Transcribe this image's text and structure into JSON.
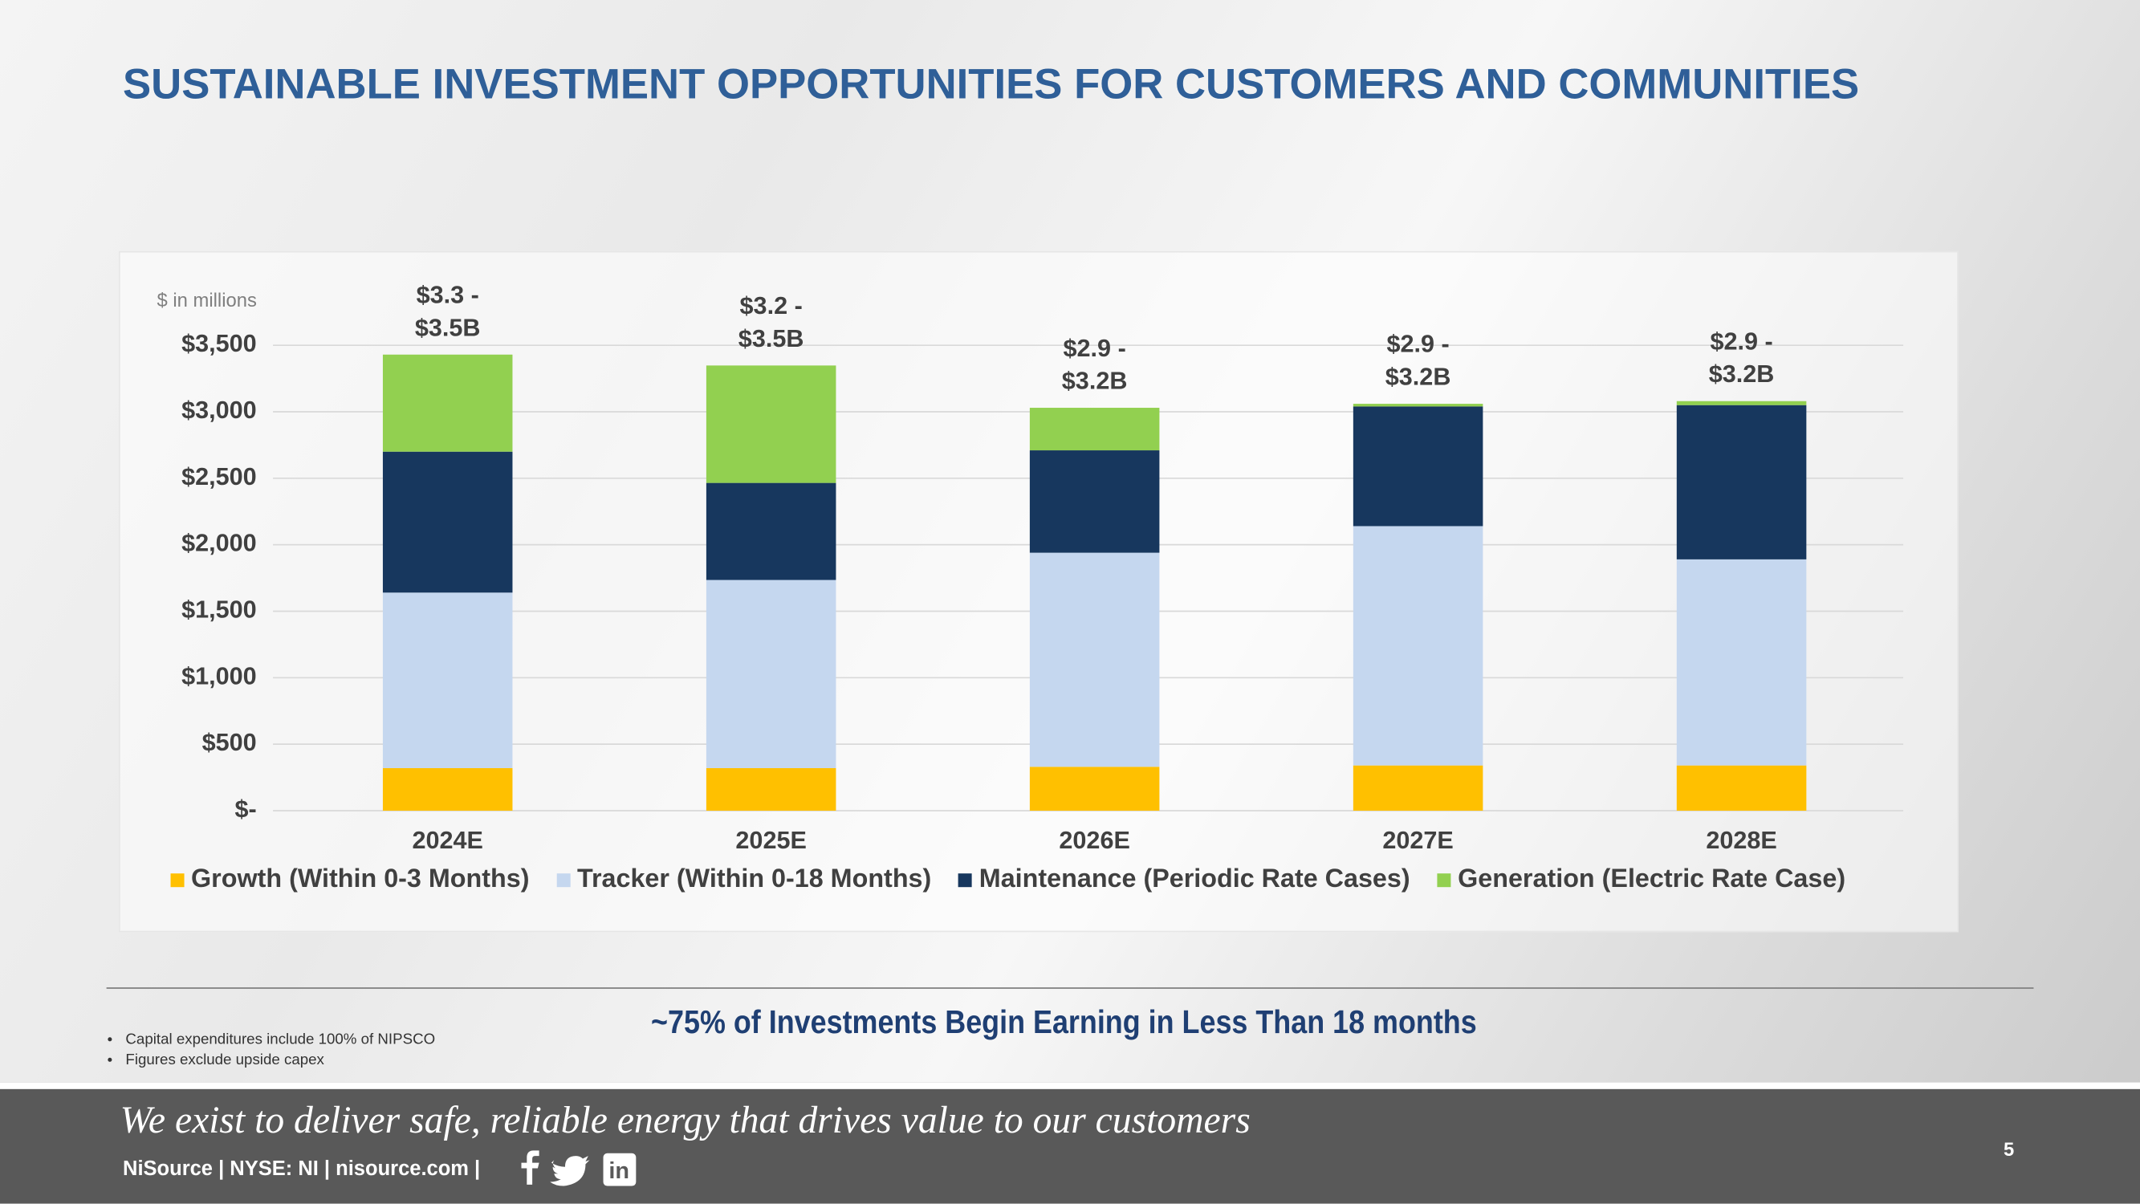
{
  "header": {
    "title": "SUSTAINABLE INVESTMENT OPPORTUNITIES FOR CUSTOMERS AND COMMUNITIES"
  },
  "chart_data": {
    "type": "bar",
    "stacked": true,
    "unit_label": "$ in millions",
    "categories": [
      "2024E",
      "2025E",
      "2026E",
      "2027E",
      "2028E"
    ],
    "series": [
      {
        "name": "Growth (Within 0-3 Months)",
        "color": "#ffc000",
        "values": [
          320,
          320,
          330,
          340,
          340
        ]
      },
      {
        "name": "Tracker (Within 0-18 Months)",
        "color": "#c5d7ef",
        "values": [
          1320,
          1415,
          1610,
          1800,
          1550
        ]
      },
      {
        "name": "Maintenance (Periodic Rate Cases)",
        "color": "#17375e",
        "values": [
          1060,
          730,
          770,
          900,
          1160
        ]
      },
      {
        "name": "Generation (Electric Rate Case)",
        "color": "#92d050",
        "values": [
          730,
          883,
          320,
          20,
          30
        ]
      }
    ],
    "total_labels": [
      "$3.3 - $3.5B",
      "$3.2 - $3.5B",
      "$2.9 - $3.2B",
      "$2.9 - $3.2B",
      "$2.9 - $3.2B"
    ],
    "ylim": [
      0,
      3500
    ],
    "yticks": [
      {
        "value": 0,
        "label": "$-"
      },
      {
        "value": 500,
        "label": "$500"
      },
      {
        "value": 1000,
        "label": "$1,000"
      },
      {
        "value": 1500,
        "label": "$1,500"
      },
      {
        "value": 2000,
        "label": "$2,000"
      },
      {
        "value": 2500,
        "label": "$2,500"
      },
      {
        "value": 3000,
        "label": "$3,000"
      },
      {
        "value": 3500,
        "label": "$3,500"
      }
    ],
    "grid": true,
    "legend": "bottom"
  },
  "callout": "~75% of Investments Begin Earning in Less Than 18 months",
  "footnotes": [
    "Capital expenditures include 100% of NIPSCO",
    "Figures exclude upside capex"
  ],
  "footer": {
    "tagline": "We exist to deliver safe, reliable energy that drives value to our customers",
    "company": "NiSource | NYSE: NI | nisource.com |",
    "page_number": 5
  }
}
